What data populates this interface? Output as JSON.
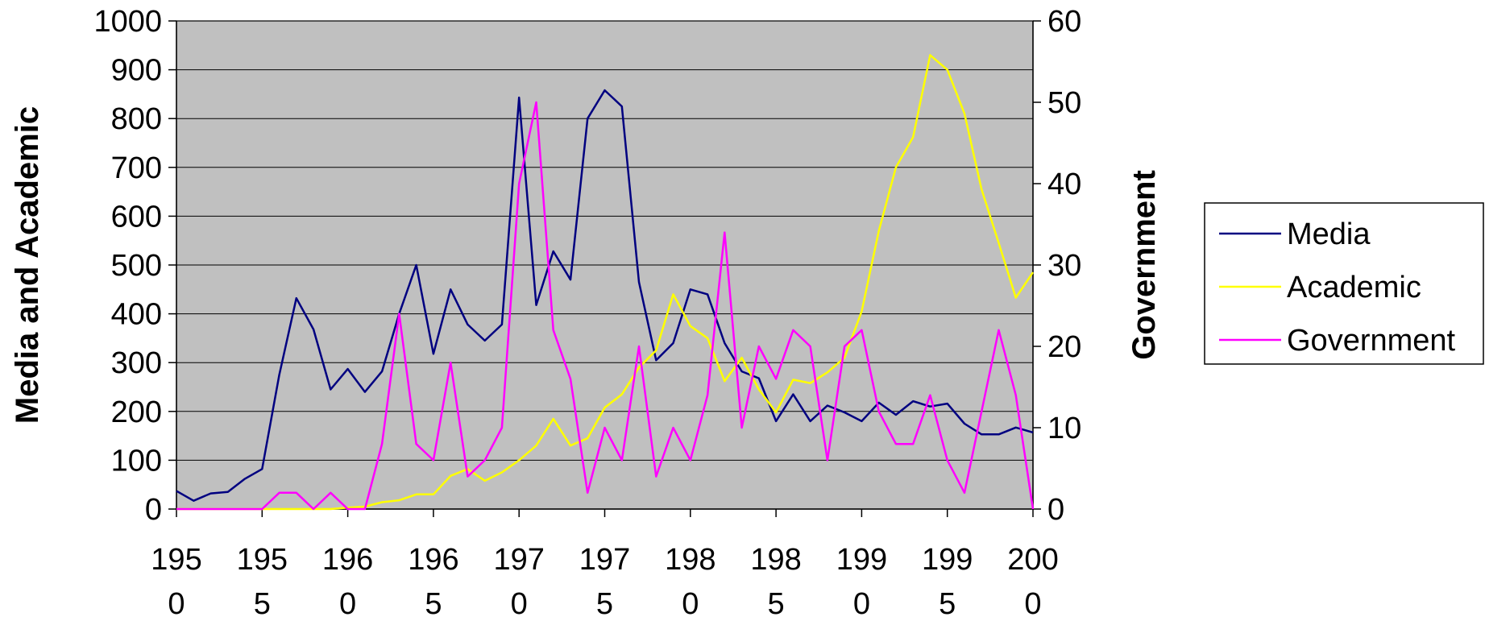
{
  "chart_data": {
    "type": "line",
    "title": "",
    "xlabel": "",
    "ylabel": "Media and Academic",
    "y2label": "Government",
    "xlim": [
      1950,
      2000
    ],
    "ylim": [
      0,
      1000
    ],
    "y2lim": [
      0,
      60
    ],
    "x_ticks": [
      1950,
      1955,
      1960,
      1965,
      1970,
      1975,
      1980,
      1985,
      1990,
      1995,
      2000
    ],
    "x_tick_labels": [
      [
        "195",
        "0"
      ],
      [
        "195",
        "5"
      ],
      [
        "196",
        "0"
      ],
      [
        "196",
        "5"
      ],
      [
        "197",
        "0"
      ],
      [
        "197",
        "5"
      ],
      [
        "198",
        "0"
      ],
      [
        "198",
        "5"
      ],
      [
        "199",
        "0"
      ],
      [
        "199",
        "5"
      ],
      [
        "200",
        "0"
      ]
    ],
    "y_ticks": [
      0,
      100,
      200,
      300,
      400,
      500,
      600,
      700,
      800,
      900,
      1000
    ],
    "y2_ticks": [
      0,
      10,
      20,
      30,
      40,
      50,
      60
    ],
    "grid": true,
    "plot_background": "#c0c0c0",
    "legend_position": "right",
    "series": [
      {
        "name": "Media",
        "axis": "left",
        "color": "#000080",
        "x": [
          1950,
          1951,
          1952,
          1953,
          1954,
          1955,
          1956,
          1957,
          1958,
          1959,
          1960,
          1961,
          1962,
          1963,
          1964,
          1965,
          1966,
          1967,
          1968,
          1969,
          1970,
          1971,
          1972,
          1973,
          1974,
          1975,
          1976,
          1977,
          1978,
          1979,
          1980,
          1981,
          1982,
          1983,
          1984,
          1985,
          1986,
          1987,
          1988,
          1989,
          1990,
          1991,
          1992,
          1993,
          1994,
          1995,
          1996,
          1997,
          1998,
          1999,
          2000
        ],
        "values": [
          37,
          17,
          32,
          35,
          62,
          82,
          275,
          432,
          368,
          245,
          287,
          240,
          282,
          400,
          500,
          318,
          450,
          378,
          345,
          378,
          843,
          418,
          528,
          470,
          800,
          858,
          825,
          465,
          305,
          340,
          450,
          440,
          340,
          282,
          268,
          180,
          235,
          180,
          212,
          198,
          180,
          218,
          193,
          221,
          210,
          216,
          175,
          153,
          153,
          167,
          157
        ]
      },
      {
        "name": "Academic",
        "axis": "left",
        "color": "#ffff00",
        "x": [
          1950,
          1951,
          1952,
          1953,
          1954,
          1955,
          1956,
          1957,
          1958,
          1959,
          1960,
          1961,
          1962,
          1963,
          1964,
          1965,
          1966,
          1967,
          1968,
          1969,
          1970,
          1971,
          1972,
          1973,
          1974,
          1975,
          1976,
          1977,
          1978,
          1979,
          1980,
          1981,
          1982,
          1983,
          1984,
          1985,
          1986,
          1987,
          1988,
          1989,
          1990,
          1991,
          1992,
          1993,
          1994,
          1995,
          1996,
          1997,
          1998,
          1999,
          2000
        ],
        "values": [
          0,
          0,
          0,
          0,
          0,
          0,
          0,
          0,
          0,
          0,
          3,
          5,
          14,
          18,
          30,
          30,
          68,
          82,
          58,
          75,
          100,
          130,
          185,
          130,
          145,
          208,
          235,
          290,
          325,
          440,
          375,
          350,
          262,
          310,
          245,
          198,
          265,
          258,
          280,
          310,
          405,
          570,
          700,
          762,
          930,
          900,
          810,
          655,
          545,
          433,
          485
        ]
      },
      {
        "name": "Government",
        "axis": "right",
        "color": "#ff00ff",
        "x": [
          1950,
          1951,
          1952,
          1953,
          1954,
          1955,
          1956,
          1957,
          1958,
          1959,
          1960,
          1961,
          1962,
          1963,
          1964,
          1965,
          1966,
          1967,
          1968,
          1969,
          1970,
          1971,
          1972,
          1973,
          1974,
          1975,
          1976,
          1977,
          1978,
          1979,
          1980,
          1981,
          1982,
          1983,
          1984,
          1985,
          1986,
          1987,
          1988,
          1989,
          1990,
          1991,
          1992,
          1993,
          1994,
          1995,
          1996,
          1997,
          1998,
          1999,
          2000
        ],
        "values": [
          0,
          0,
          0,
          0,
          0,
          0,
          2,
          2,
          0,
          2,
          0,
          0,
          8,
          24,
          8,
          6,
          18,
          4,
          6,
          10,
          40,
          50,
          22,
          16,
          2,
          10,
          6,
          20,
          4,
          10,
          6,
          14,
          34,
          10,
          20,
          16,
          22,
          20,
          6,
          20,
          22,
          12,
          8,
          8,
          14,
          6,
          2,
          12,
          22,
          14,
          0
        ]
      }
    ]
  }
}
